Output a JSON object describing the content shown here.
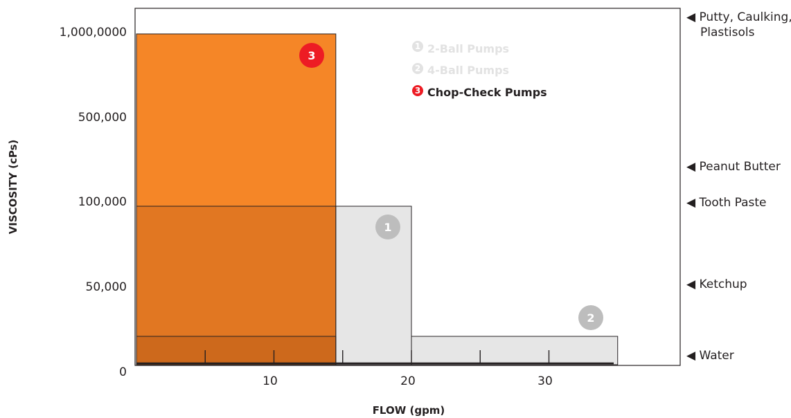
{
  "chart_data": {
    "type": "bar",
    "xlabel": "FLOW (gpm)",
    "ylabel": "VISCOSITY (cPs)",
    "x_ticks": [
      "10",
      "20",
      "30"
    ],
    "y_ticks": [
      "0",
      "50,000",
      "100,000",
      "500,000",
      "1,000,0000"
    ],
    "x_origin_label": "0",
    "series": [
      {
        "name": "2-Ball Pumps",
        "badge": "1",
        "max_flow_gpm": 20,
        "max_viscosity_cps": 100000,
        "fill": "#e6e6e6",
        "badge_color": "#bdbdbd"
      },
      {
        "name": "4-Ball Pumps",
        "badge": "2",
        "max_flow_gpm": 35,
        "max_viscosity_cps": 10000,
        "fill": "#e6e6e6",
        "badge_color": "#bdbdbd"
      },
      {
        "name": "Chop-Check Pumps",
        "badge": "3",
        "max_flow_gpm": 14.5,
        "max_viscosity_cps": 1000000,
        "fill": "#f58220",
        "badge_color": "#ed1c24"
      }
    ],
    "active_series": "Chop-Check Pumps",
    "reference_labels": [
      "Putty, Caulking,",
      "Plastisols",
      "Peanut Butter",
      "Tooth Paste",
      "Ketchup",
      "Water"
    ],
    "reference_marker": "◀",
    "legend_position": "top-center",
    "grid": false
  }
}
